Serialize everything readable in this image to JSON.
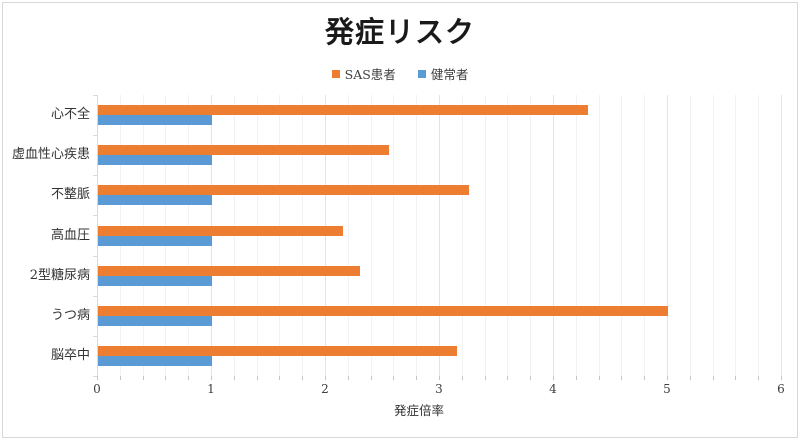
{
  "title": "発症リスク",
  "legend": {
    "items": [
      {
        "label": "SAS患者",
        "color": "#ED7D31"
      },
      {
        "label": "健常者",
        "color": "#5B9BD5"
      }
    ]
  },
  "chart_data": {
    "type": "bar",
    "orientation": "horizontal",
    "title": "発症リスク",
    "categories": [
      "心不全",
      "虚血性心疾患",
      "不整脈",
      "高血圧",
      "2型糖尿病",
      "うつ病",
      "脳卒中"
    ],
    "series": [
      {
        "name": "SAS患者",
        "color": "#ED7D31",
        "values": [
          4.3,
          2.55,
          3.25,
          2.15,
          2.3,
          5.0,
          3.15
        ]
      },
      {
        "name": "健常者",
        "color": "#5B9BD5",
        "values": [
          1,
          1,
          1,
          1,
          1,
          1,
          1
        ]
      }
    ],
    "xlabel": "発症倍率",
    "ylabel": "",
    "xlim": [
      0,
      6
    ],
    "x_tick_labels": [
      "0",
      "1",
      "2",
      "3",
      "4",
      "5",
      "6"
    ],
    "minor_unit": 0.2,
    "grid": true,
    "legend_position": "top"
  }
}
